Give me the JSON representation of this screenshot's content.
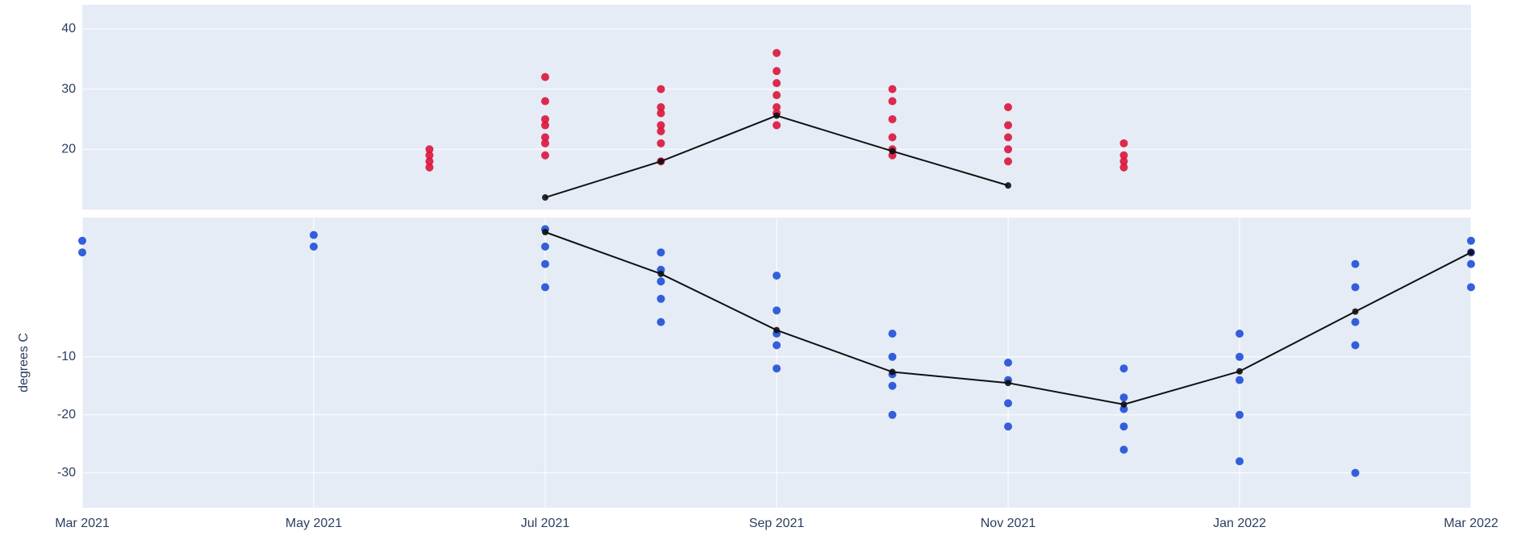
{
  "chart_data": [
    {
      "type": "scatter",
      "xlim": [
        "2021-03",
        "2022-03"
      ],
      "ylim": [
        10,
        44
      ],
      "yticks": [
        20,
        30,
        40
      ],
      "grid": true,
      "series": [
        {
          "mode": "markers",
          "color": "#dc143c",
          "x": [
            "2021-06",
            "2021-06",
            "2021-06",
            "2021-06",
            "2021-07",
            "2021-07",
            "2021-07",
            "2021-07",
            "2021-07",
            "2021-07",
            "2021-07",
            "2021-08",
            "2021-08",
            "2021-08",
            "2021-08",
            "2021-08",
            "2021-08",
            "2021-08",
            "2021-09",
            "2021-09",
            "2021-09",
            "2021-09",
            "2021-09",
            "2021-09",
            "2021-09",
            "2021-10",
            "2021-10",
            "2021-10",
            "2021-10",
            "2021-10",
            "2021-10",
            "2021-11",
            "2021-11",
            "2021-11",
            "2021-11",
            "2021-11",
            "2021-12",
            "2021-12",
            "2021-12",
            "2021-12"
          ],
          "values": [
            19,
            17,
            20,
            18,
            22,
            25,
            28,
            32,
            19,
            24,
            21,
            23,
            27,
            21,
            26,
            30,
            18,
            24,
            26,
            29,
            33,
            36,
            27,
            31,
            24,
            22,
            25,
            30,
            20,
            28,
            19,
            20,
            24,
            27,
            18,
            22,
            19,
            21,
            17,
            18
          ]
        },
        {
          "mode": "lines+markers",
          "color": "#111111",
          "x": [
            "2021-07",
            "2021-08",
            "2021-09",
            "2021-10",
            "2021-11"
          ],
          "values": [
            12,
            18,
            25.6,
            19.7,
            14
          ]
        }
      ]
    },
    {
      "type": "scatter",
      "y_label": "degrees C",
      "xlim": [
        "2021-03",
        "2022-03"
      ],
      "xticks": [
        {
          "value": "2021-03",
          "label": "Mar 2021"
        },
        {
          "value": "2021-05",
          "label": "May 2021"
        },
        {
          "value": "2021-07",
          "label": "Jul 2021"
        },
        {
          "value": "2021-09",
          "label": "Sep 2021"
        },
        {
          "value": "2021-11",
          "label": "Nov 2021"
        },
        {
          "value": "2022-01",
          "label": "Jan 2022"
        },
        {
          "value": "2022-03",
          "label": "Mar 2022"
        }
      ],
      "ylim": [
        -36,
        14
      ],
      "yticks": [
        -30,
        -20,
        -10
      ],
      "grid": true,
      "series": [
        {
          "mode": "markers",
          "color": "#1f4fd8",
          "x": [
            "2021-03",
            "2021-03",
            "2021-05",
            "2021-05",
            "2021-07",
            "2021-07",
            "2021-07",
            "2021-07",
            "2021-08",
            "2021-08",
            "2021-08",
            "2021-08",
            "2021-08",
            "2021-09",
            "2021-09",
            "2021-09",
            "2021-09",
            "2021-09",
            "2021-10",
            "2021-10",
            "2021-10",
            "2021-10",
            "2021-10",
            "2021-11",
            "2021-11",
            "2021-11",
            "2021-11",
            "2021-12",
            "2021-12",
            "2021-12",
            "2021-12",
            "2021-12",
            "2022-01",
            "2022-01",
            "2022-01",
            "2022-01",
            "2022-01",
            "2022-02",
            "2022-02",
            "2022-02",
            "2022-02",
            "2022-02",
            "2022-03",
            "2022-03",
            "2022-03",
            "2022-03"
          ],
          "values": [
            8,
            10,
            9,
            11,
            12,
            6,
            2,
            9,
            5,
            0,
            -4,
            8,
            3,
            -2,
            -8,
            -12,
            4,
            -6,
            -10,
            -15,
            -20,
            -6,
            -13,
            -14,
            -18,
            -22,
            -11,
            -17,
            -22,
            -12,
            -26,
            -19,
            -14,
            -10,
            -20,
            -28,
            -6,
            -4,
            2,
            -8,
            6,
            -30,
            6,
            10,
            2,
            8
          ]
        },
        {
          "mode": "lines+markers",
          "color": "#111111",
          "x": [
            "2021-07",
            "2021-08",
            "2021-09",
            "2021-10",
            "2021-11",
            "2021-12",
            "2022-01",
            "2022-02",
            "2022-03"
          ],
          "values": [
            11.5,
            4.3,
            -5.4,
            -12.6,
            -14.5,
            -18.2,
            -12.5,
            -2.2,
            8
          ]
        }
      ]
    }
  ]
}
